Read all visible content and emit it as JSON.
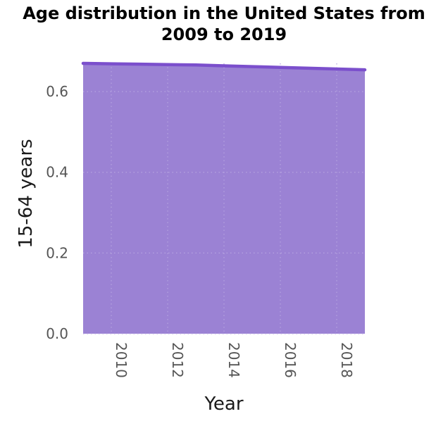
{
  "chart_data": {
    "type": "area",
    "title": "Age distribution in the United States from 2009 to 2019",
    "title_lines": [
      "Age distribution in the United States from",
      "2009 to 2019"
    ],
    "xlabel": "Year",
    "ylabel": "15-64 years",
    "x": [
      2009,
      2010,
      2011,
      2012,
      2013,
      2014,
      2015,
      2016,
      2017,
      2018,
      2019
    ],
    "series": [
      {
        "values": [
          0.67,
          0.669,
          0.668,
          0.667,
          0.666,
          0.664,
          0.662,
          0.66,
          0.658,
          0.656,
          0.654
        ],
        "fill_color": "#9b82d4",
        "line_color": "#7b4fcc"
      }
    ],
    "xlim": [
      2009,
      2019
    ],
    "ylim": [
      0,
      0.67
    ],
    "xticks": [
      2010,
      2012,
      2014,
      2016,
      2018
    ],
    "yticks": [
      0.0,
      0.2,
      0.4,
      0.6
    ],
    "ytick_labels": [
      "0.0",
      "0.2",
      "0.4",
      "0.6"
    ],
    "xtick_labels": [
      "2010",
      "2012",
      "2014",
      "2016",
      "2018"
    ],
    "grid": true,
    "legend": "none"
  }
}
